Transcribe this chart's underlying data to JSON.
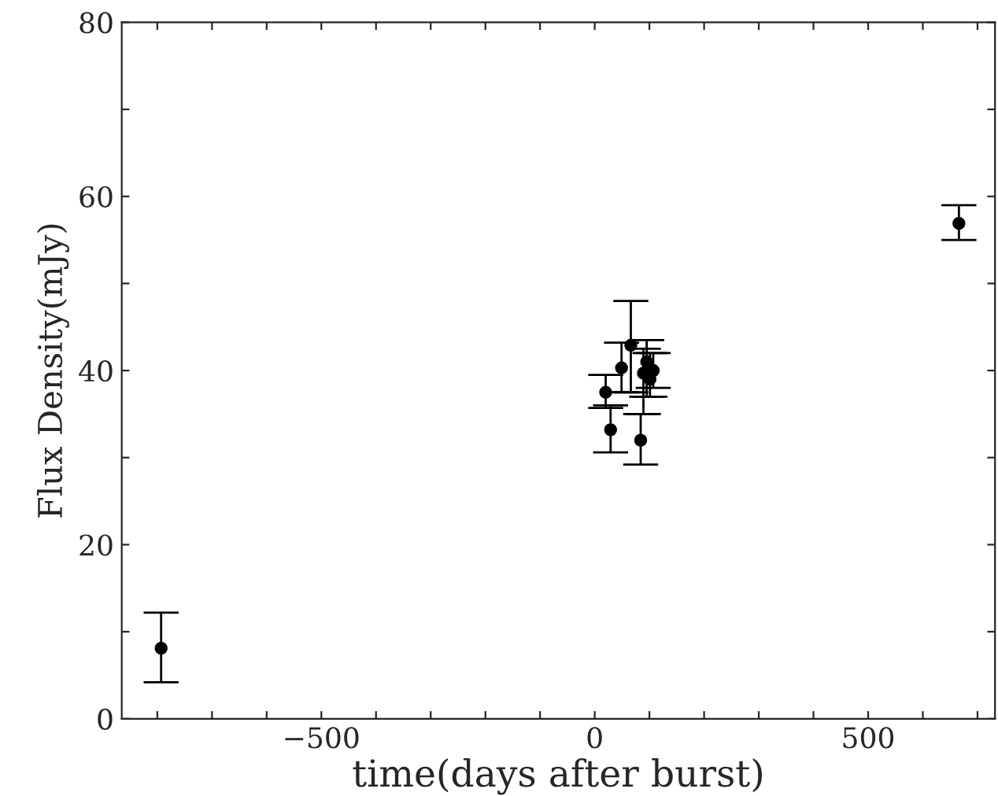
{
  "chart_data": {
    "type": "scatter",
    "xlabel": "time(days after burst)",
    "ylabel": "Flux Density(mJy)",
    "x": [
      -793,
      20,
      29,
      49,
      66,
      84,
      89,
      95,
      101,
      107,
      666
    ],
    "values": [
      8.1,
      37.5,
      33.2,
      40.3,
      42.9,
      32.0,
      39.7,
      41.0,
      39.0,
      40.0,
      56.9
    ],
    "errors": [
      [
        4.2,
        12.2
      ],
      [
        35.7,
        39.5
      ],
      [
        30.6,
        36.0
      ],
      [
        37.5,
        43.2
      ],
      [
        37.5,
        48.0
      ],
      [
        29.2,
        35.0
      ],
      [
        35.0,
        42.5
      ],
      [
        37.0,
        43.5
      ],
      [
        37.0,
        42.0
      ],
      [
        38.0,
        42.0
      ],
      [
        55.0,
        59.0
      ]
    ],
    "color": "#000000",
    "marker": "circle",
    "grid": false,
    "legend": false,
    "xlim": [
      -865,
      732
    ],
    "ylim": [
      0,
      80
    ],
    "xticks": [
      {
        "value": -800,
        "label": null
      },
      {
        "value": -700,
        "label": null
      },
      {
        "value": -600,
        "label": null
      },
      {
        "value": -500,
        "label": "−500"
      },
      {
        "value": -400,
        "label": null
      },
      {
        "value": -300,
        "label": null
      },
      {
        "value": -200,
        "label": null
      },
      {
        "value": -100,
        "label": null
      },
      0,
      {
        "value": 100,
        "label": null
      },
      {
        "value": 200,
        "label": null
      },
      {
        "value": 300,
        "label": null
      },
      {
        "value": 400,
        "label": null
      },
      500,
      {
        "value": 600,
        "label": null
      },
      {
        "value": 700,
        "label": null
      }
    ],
    "yticks": [
      0,
      {
        "value": 10,
        "label": null
      },
      20,
      {
        "value": 30,
        "label": null
      },
      40,
      {
        "value": 50,
        "label": null
      },
      60,
      {
        "value": 70,
        "label": null
      },
      80
    ]
  }
}
